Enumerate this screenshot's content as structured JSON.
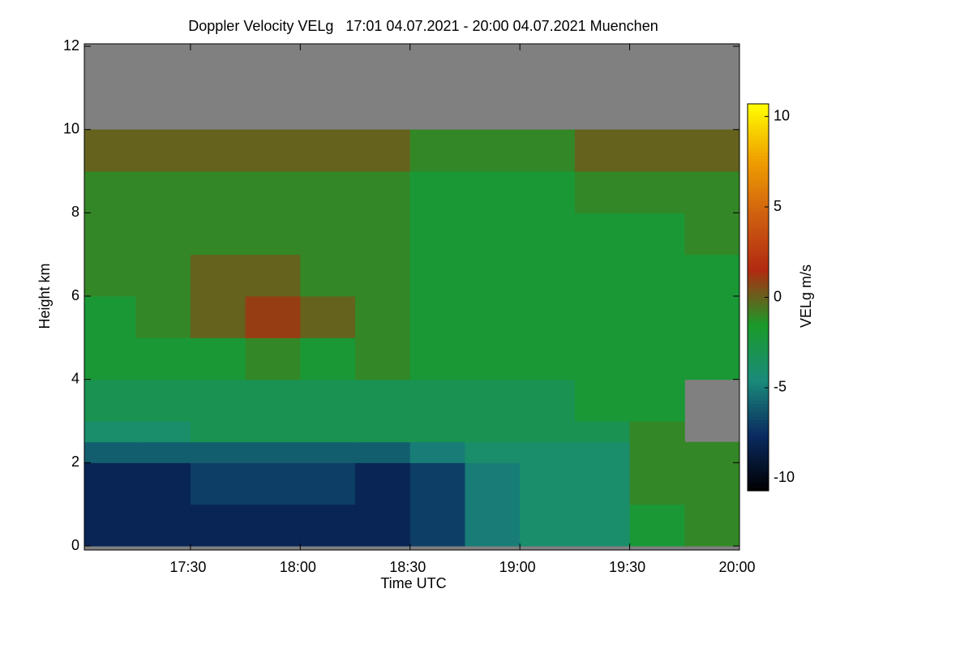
{
  "chart_data": {
    "type": "heatmap",
    "title": "Doppler Velocity VELg   17:01 04.07.2021 - 20:00 04.07.2021 Muenchen",
    "x_label": "Time UTC",
    "y_label": "Height km",
    "colorbar_label": "VELg m/s",
    "missing_color": "#808080",
    "xlim": [
      1021,
      1200
    ],
    "xticks": [
      {
        "value": 1050,
        "label": "17:30"
      },
      {
        "value": 1080,
        "label": "18:00"
      },
      {
        "value": 1110,
        "label": "18:30"
      },
      {
        "value": 1140,
        "label": "19:00"
      },
      {
        "value": 1170,
        "label": "19:30"
      },
      {
        "value": 1200,
        "label": "20:00"
      }
    ],
    "ylim": [
      0,
      12
    ],
    "yticks": [
      0,
      2,
      4,
      6,
      8,
      10,
      12
    ],
    "clim": [
      -10.7,
      10.7
    ],
    "cticks": [
      -10,
      -5,
      0,
      5,
      10
    ],
    "colorscale": [
      "#000000",
      "#0a2a60",
      "#1a8a7a",
      "#1a9a2a",
      "#b02a10",
      "#d06010",
      "#f0a000",
      "#ffff00"
    ],
    "x_edges": [
      1021,
      1035,
      1050,
      1065,
      1080,
      1095,
      1110,
      1125,
      1140,
      1155,
      1170,
      1185,
      1200
    ],
    "y_edges": [
      0,
      1,
      2,
      2.5,
      3,
      4,
      5,
      6,
      7,
      8,
      9,
      10,
      12
    ],
    "z": [
      [
        -8,
        -8,
        -8,
        -8,
        -8,
        -8,
        -7,
        -5,
        -4,
        -4,
        -2,
        -1
      ],
      [
        -8,
        -8,
        -7,
        -7,
        -7,
        -8,
        -7,
        -5,
        -4,
        -4,
        -1,
        -1
      ],
      [
        -6,
        -6,
        -6,
        -6,
        -6,
        -6,
        -5,
        -4,
        -4,
        -4,
        -1,
        -1
      ],
      [
        -4,
        -4,
        -3,
        -3,
        -3,
        -3,
        -3,
        -3,
        -3,
        -3,
        -1,
        null
      ],
      [
        -3,
        -3,
        -3,
        -3,
        -3,
        -3,
        -3,
        -3,
        -3,
        -2,
        -2,
        null
      ],
      [
        -2,
        -2,
        -2,
        -1,
        -2,
        -1,
        -2,
        -2,
        -2,
        -2,
        -2,
        -2
      ],
      [
        -2,
        -1,
        0,
        1,
        0,
        -1,
        -2,
        -2,
        -2,
        -2,
        -2,
        -2
      ],
      [
        -1,
        -1,
        0,
        0,
        -1,
        -1,
        -2,
        -2,
        -2,
        -2,
        -2,
        -2
      ],
      [
        -1,
        -1,
        -1,
        -1,
        -1,
        -1,
        -2,
        -2,
        -2,
        -2,
        -2,
        -1
      ],
      [
        -1,
        -1,
        -1,
        -1,
        -1,
        -1,
        -2,
        -2,
        -2,
        -1,
        -1,
        -1
      ],
      [
        0,
        0,
        0,
        0,
        0,
        0,
        -1,
        -1,
        -1,
        0,
        0,
        0
      ],
      [
        null,
        null,
        null,
        null,
        null,
        null,
        null,
        null,
        null,
        null,
        null,
        null
      ]
    ]
  }
}
